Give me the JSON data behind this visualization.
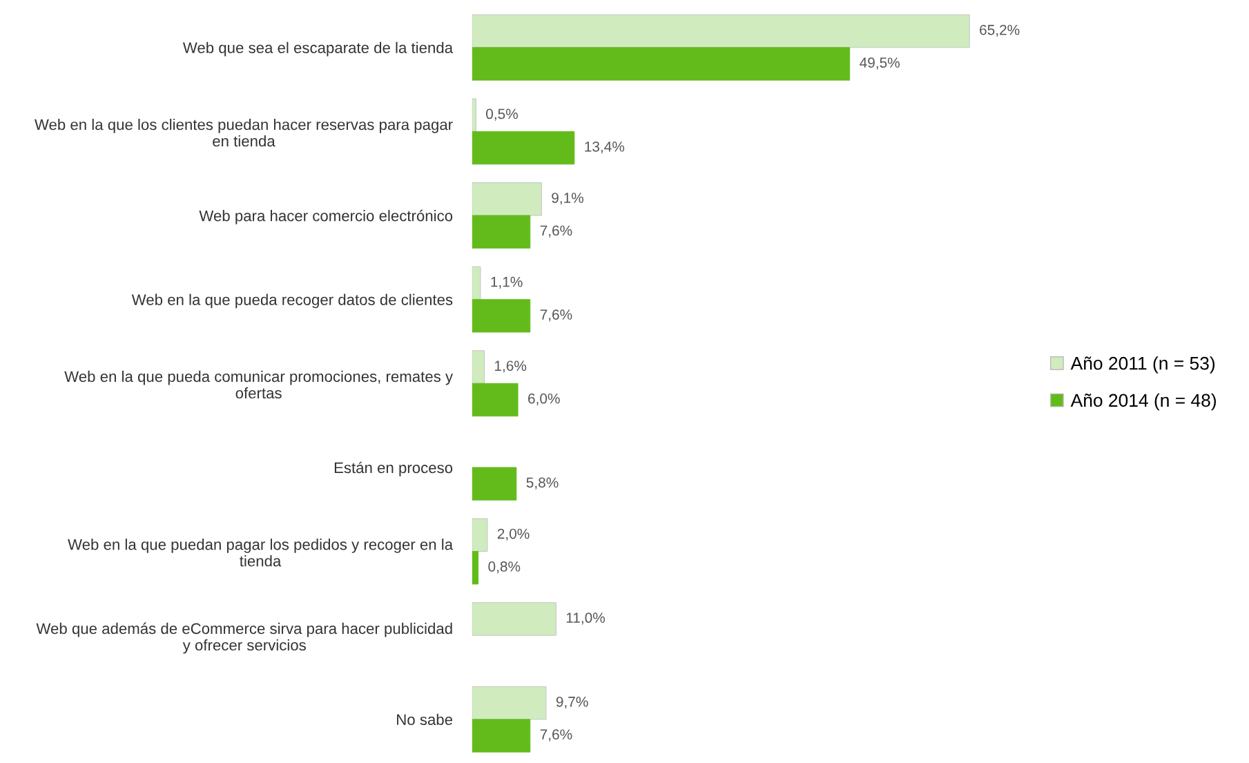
{
  "chart_data": {
    "type": "bar",
    "orientation": "horizontal",
    "legend": "right",
    "grid": false,
    "categories": [
      "Web que sea el escaparate de la tienda",
      "Web en la que los clientes puedan hacer reservas para pagar\nen tienda",
      "Web para hacer comercio electrónico",
      "Web en la que pueda recoger datos de clientes",
      "Web en la que pueda comunicar promociones, remates y\nofertas",
      "Están en proceso",
      "Web en la que puedan pagar los pedidos y recoger en la\ntienda",
      "Web que además de eCommerce sirva para hacer publicidad\ny ofrecer servicios",
      "No sabe"
    ],
    "series": [
      {
        "name": "Año 2011 (n = 53)",
        "color": "#d0ecbf",
        "values": [
          65.2,
          0.5,
          9.1,
          1.1,
          1.6,
          null,
          2.0,
          11.0,
          9.7
        ],
        "value_labels": [
          "65,2%",
          "0,5%",
          "9,1%",
          "1,1%",
          "1,6%",
          null,
          "2,0%",
          "11,0%",
          "9,7%"
        ]
      },
      {
        "name": "Año 2014 (n = 48)",
        "color": "#62bb1a",
        "values": [
          49.5,
          13.4,
          7.6,
          7.6,
          6.0,
          5.8,
          0.8,
          null,
          7.6
        ],
        "value_labels": [
          "49,5%",
          "13,4%",
          "7,6%",
          "7,6%",
          "6,0%",
          "5,8%",
          "0,8%",
          null,
          "7,6%"
        ]
      }
    ]
  }
}
